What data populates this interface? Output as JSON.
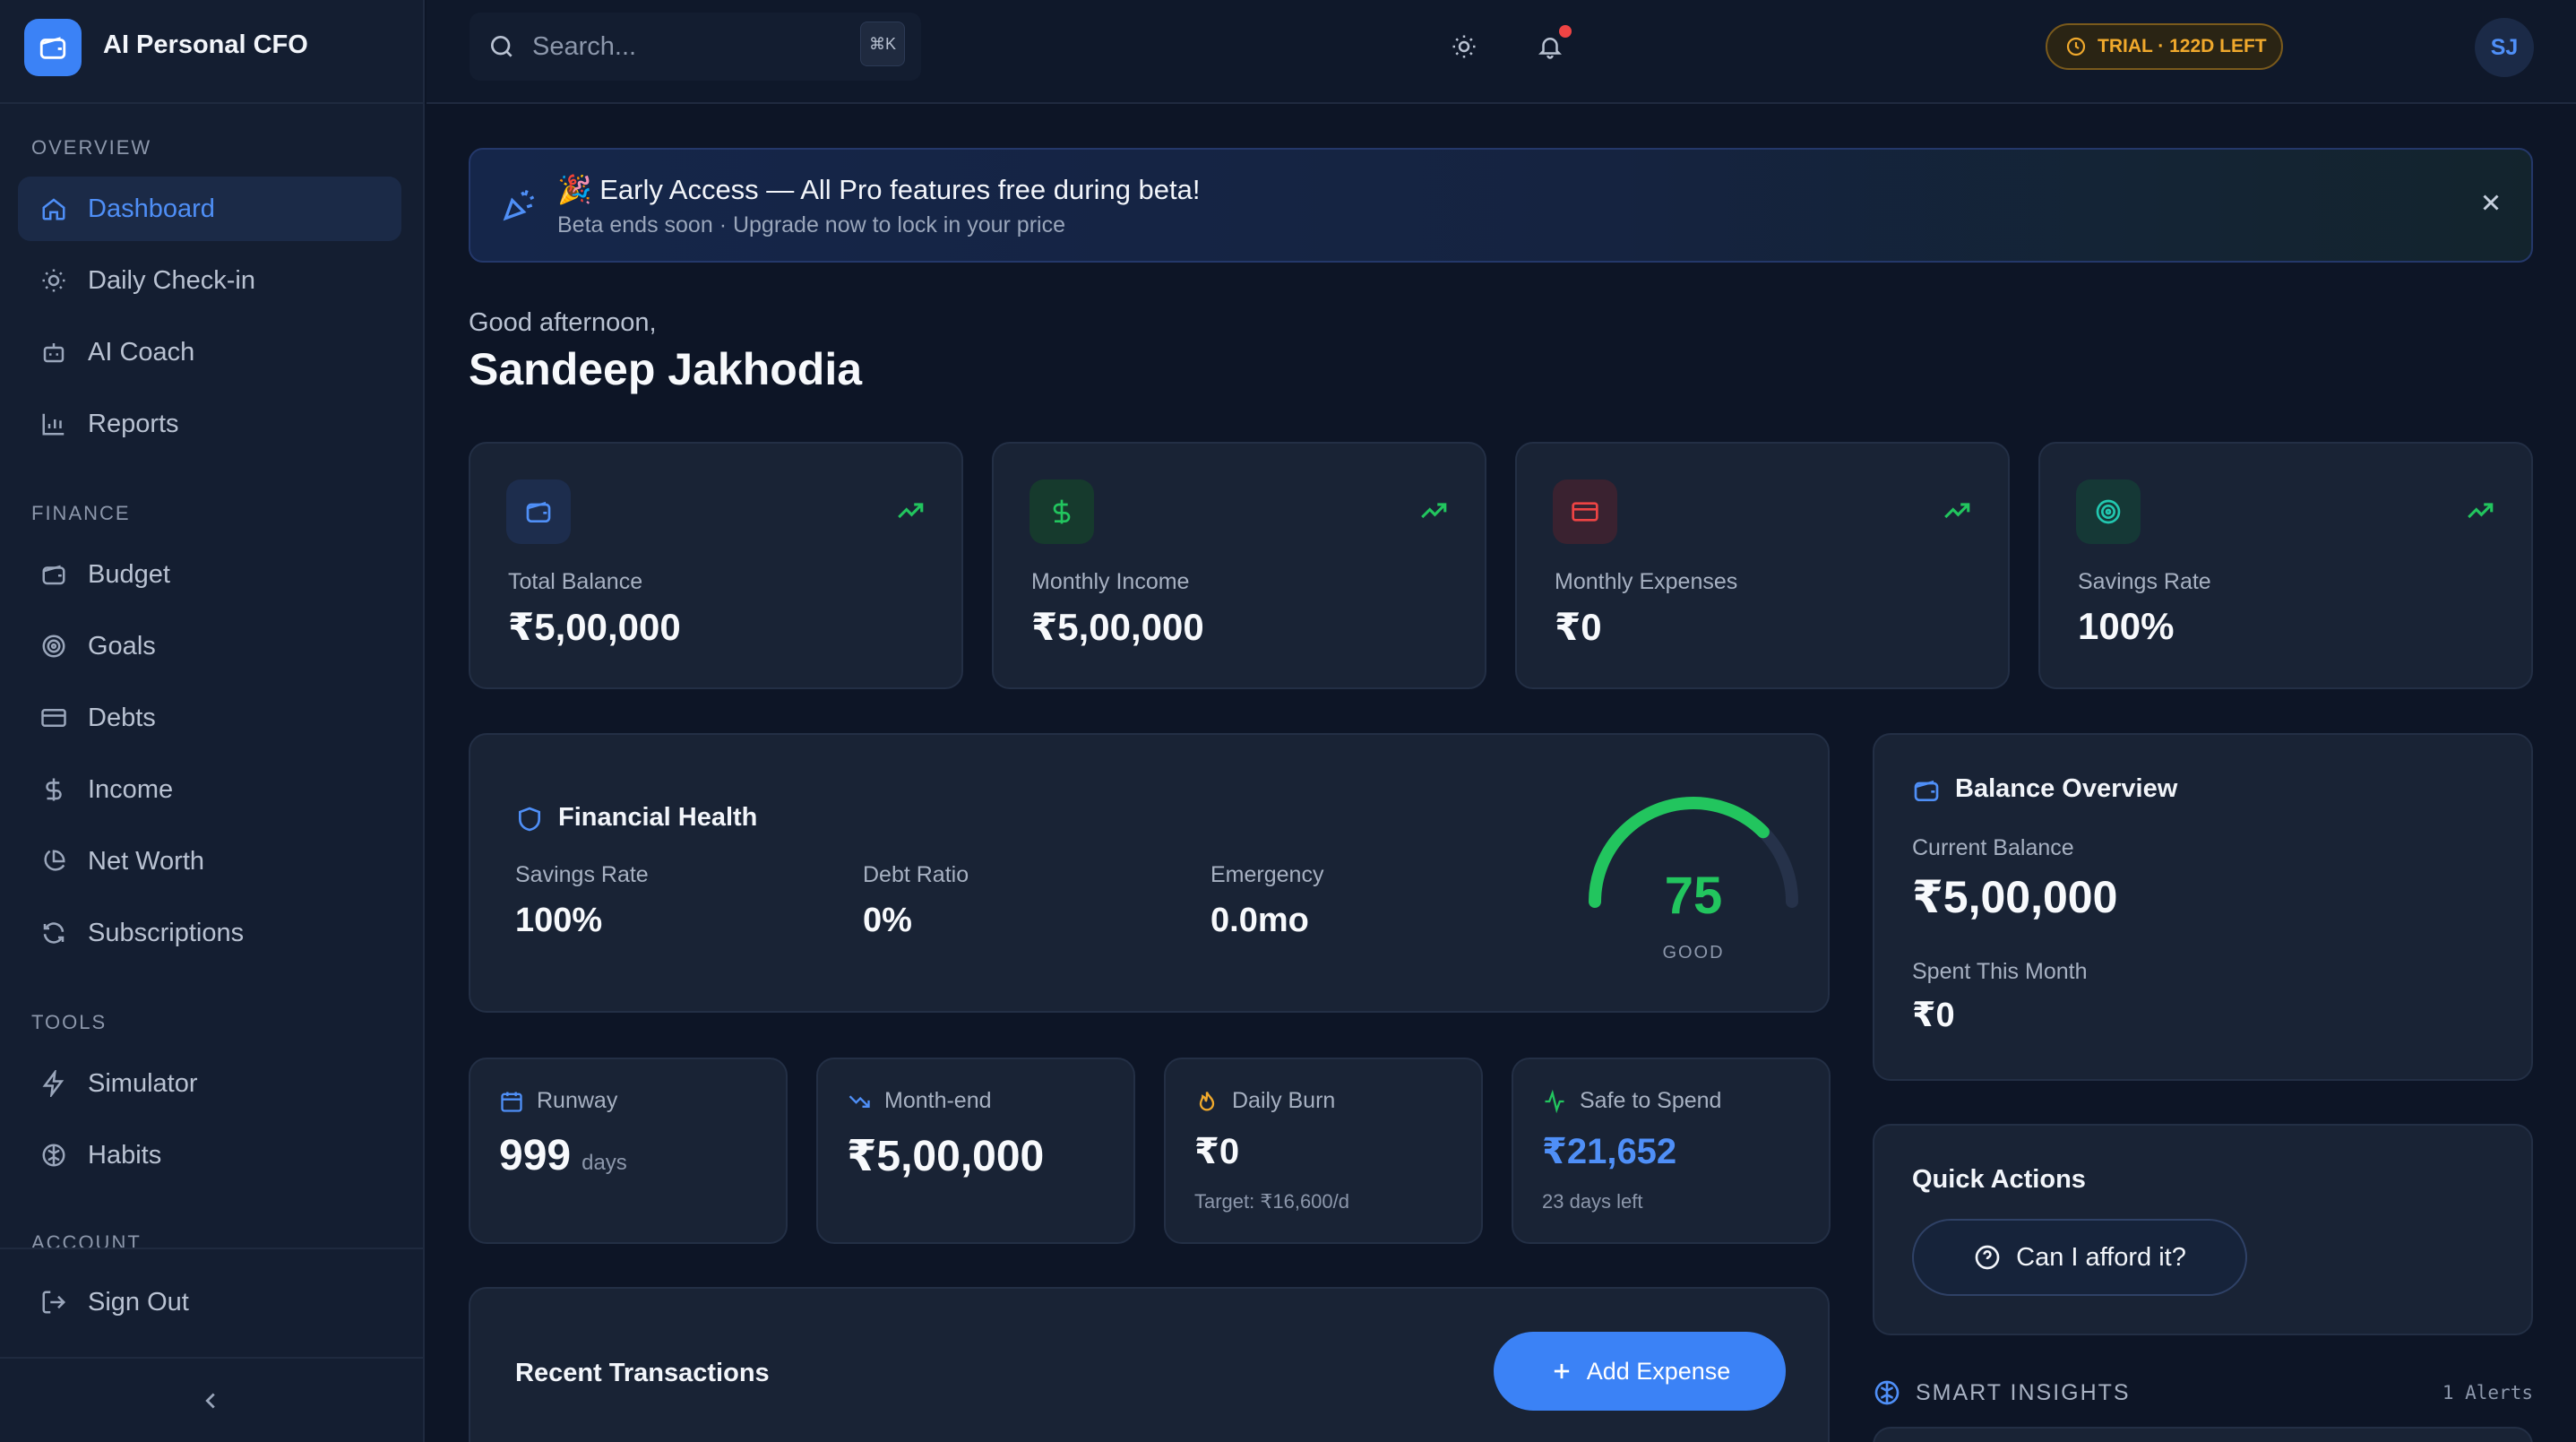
{
  "app": {
    "name": "AI Personal CFO"
  },
  "sidebar": {
    "sections": {
      "overview": "OVERVIEW",
      "finance": "FINANCE",
      "tools": "TOOLS",
      "account": "ACCOUNT"
    },
    "items": [
      {
        "label": "Dashboard",
        "icon": "home-icon",
        "active": true
      },
      {
        "label": "Daily Check-in",
        "icon": "sun-icon"
      },
      {
        "label": "AI Coach",
        "icon": "bot-icon"
      },
      {
        "label": "Reports",
        "icon": "bar-chart-icon"
      },
      {
        "label": "Budget",
        "icon": "wallet-icon"
      },
      {
        "label": "Goals",
        "icon": "target-icon"
      },
      {
        "label": "Debts",
        "icon": "credit-card-icon"
      },
      {
        "label": "Income",
        "icon": "dollar-icon"
      },
      {
        "label": "Net Worth",
        "icon": "pie-chart-icon"
      },
      {
        "label": "Subscriptions",
        "icon": "refresh-icon"
      },
      {
        "label": "Simulator",
        "icon": "zap-icon"
      },
      {
        "label": "Habits",
        "icon": "brain-icon"
      }
    ],
    "sign_out": "Sign Out"
  },
  "topbar": {
    "search_placeholder": "Search...",
    "shortcut": "⌘K",
    "trial": "TRIAL · 122D LEFT",
    "avatar": "SJ"
  },
  "banner": {
    "emoji": "🎉",
    "title": "Early Access — All Pro features free during beta!",
    "subtitle": "Beta ends soon · Upgrade now to lock in your price"
  },
  "greeting": {
    "line": "Good afternoon,",
    "name": "Sandeep Jakhodia"
  },
  "stats": [
    {
      "label": "Total Balance",
      "value": "₹5,00,000",
      "icon": "wallet-icon"
    },
    {
      "label": "Monthly Income",
      "value": "₹5,00,000",
      "icon": "dollar-icon"
    },
    {
      "label": "Monthly Expenses",
      "value": "₹0",
      "icon": "credit-card-icon"
    },
    {
      "label": "Savings Rate",
      "value": "100%",
      "icon": "target-icon"
    }
  ],
  "financial_health": {
    "title": "Financial Health",
    "metrics": [
      {
        "label": "Savings Rate",
        "value": "100%"
      },
      {
        "label": "Debt Ratio",
        "value": "0%"
      },
      {
        "label": "Emergency",
        "value": "0.0mo"
      }
    ],
    "score": "75",
    "score_value": 75,
    "score_label": "GOOD"
  },
  "mini": [
    {
      "label": "Runway",
      "value": "999",
      "unit": "days",
      "sub": ""
    },
    {
      "label": "Month-end",
      "value": "₹5,00,000",
      "sub": ""
    },
    {
      "label": "Daily Burn",
      "value": "₹0",
      "sub": "Target: ₹16,600/d"
    },
    {
      "label": "Safe to Spend",
      "value": "₹21,652",
      "sub": "23 days left"
    }
  ],
  "balance_overview": {
    "title": "Balance Overview",
    "current_label": "Current Balance",
    "current_value": "₹5,00,000",
    "spent_label": "Spent This Month",
    "spent_value": "₹0"
  },
  "quick_actions": {
    "title": "Quick Actions",
    "afford": "Can I afford it?"
  },
  "recent": {
    "title": "Recent Transactions",
    "add": "Add Expense"
  },
  "insights": {
    "title": "SMART INSIGHTS",
    "count": "1 Alerts"
  },
  "colors": {
    "accent": "#3b82f6",
    "good": "#22c55e",
    "warn": "#f0a92c",
    "danger": "#ef4444"
  }
}
